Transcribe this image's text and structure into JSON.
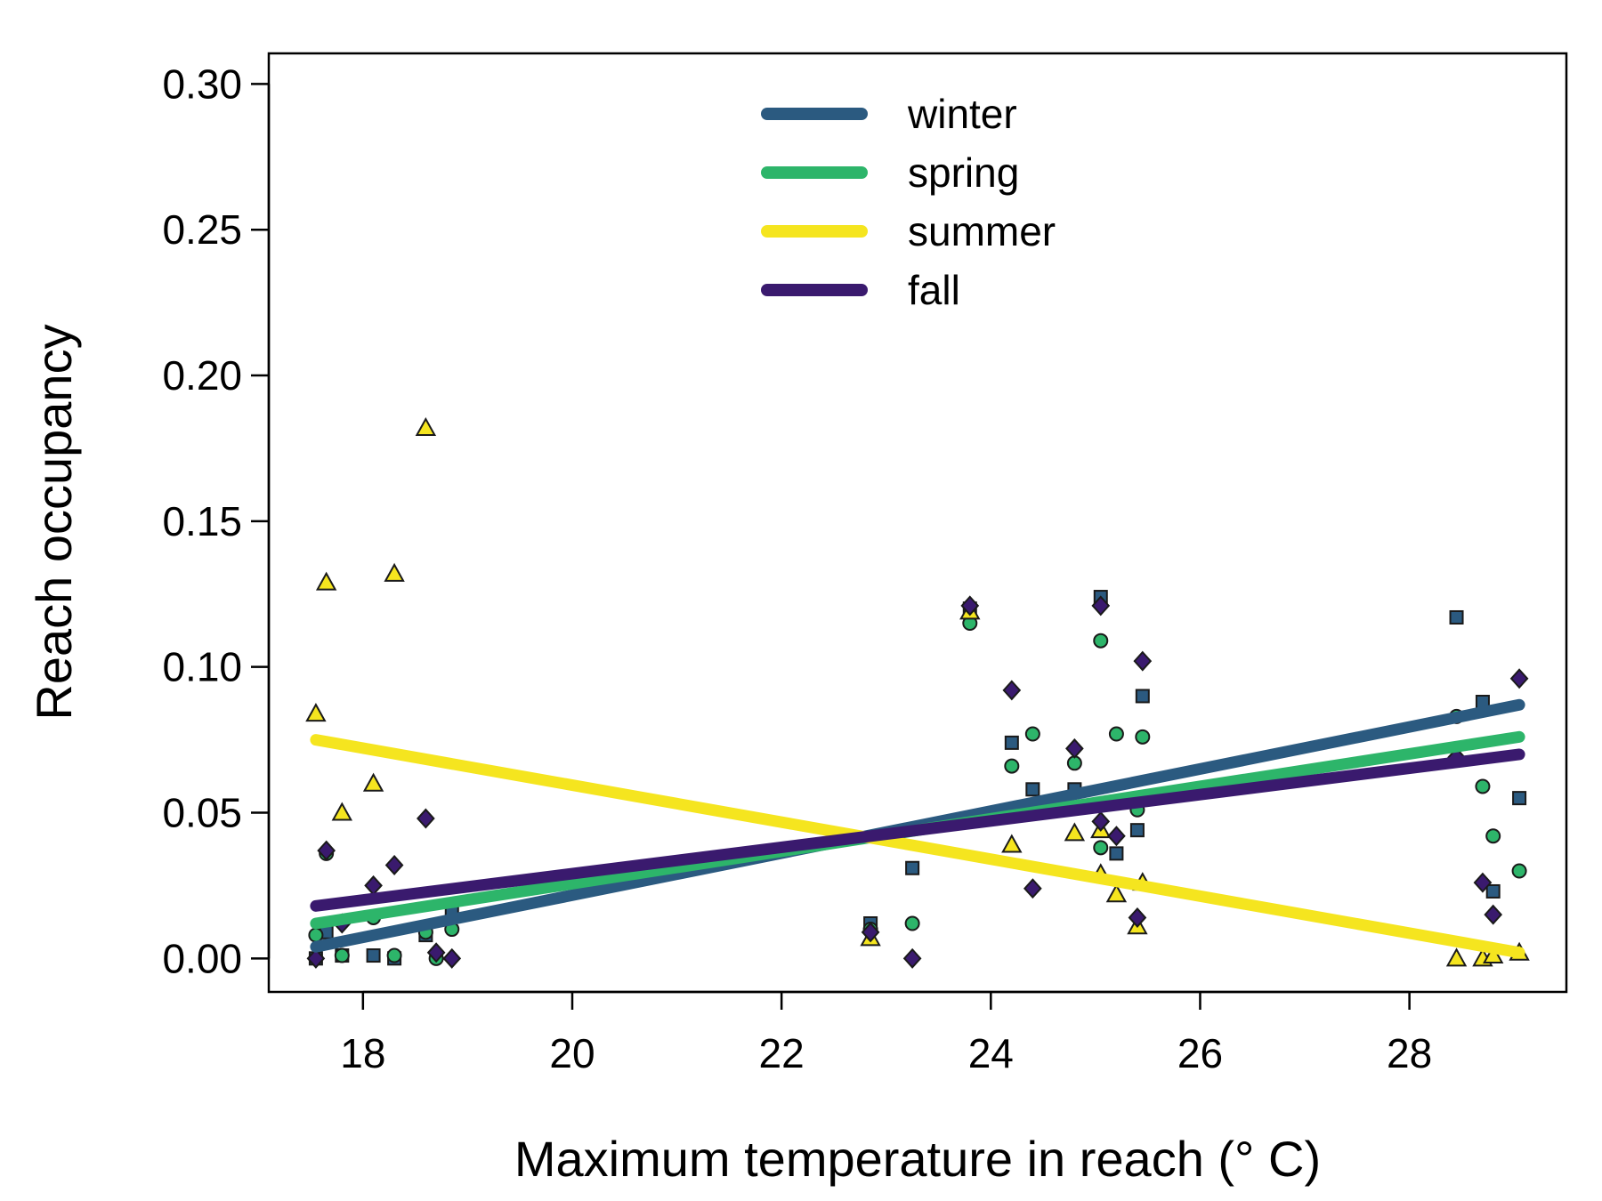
{
  "chart_data": {
    "type": "scatter",
    "xlabel": "Maximum temperature in reach (° C)",
    "ylabel": "Reach occupancy",
    "xlim": [
      17.1,
      29.5
    ],
    "ylim": [
      -0.0115,
      0.3105
    ],
    "x_ticks": [
      18,
      20,
      22,
      24,
      26,
      28
    ],
    "y_ticks": [
      0,
      0.05,
      0.1,
      0.15,
      0.2,
      0.25,
      0.3
    ],
    "x_tick_labels": [
      "18",
      "20",
      "22",
      "24",
      "26",
      "28"
    ],
    "y_tick_labels": [
      "0.00",
      "0.05",
      "0.10",
      "0.15",
      "0.20",
      "0.25",
      "0.30"
    ],
    "grid": false,
    "legend_position": "top-center",
    "series": [
      {
        "name": "winter",
        "color": "#2b5a80",
        "marker": "square",
        "trend": [
          [
            17.55,
            0.004
          ],
          [
            29.05,
            0.087
          ]
        ],
        "x": [
          17.55,
          17.65,
          17.8,
          18.1,
          18.3,
          18.6,
          18.85,
          22.85,
          23.25,
          23.8,
          24.2,
          24.4,
          24.8,
          25.05,
          25.2,
          25.4,
          25.45,
          28.45,
          28.7,
          28.8,
          29.05
        ],
        "y": [
          0.0,
          0.009,
          0.001,
          0.001,
          0.0,
          0.008,
          0.016,
          0.012,
          0.031,
          0.12,
          0.074,
          0.058,
          0.058,
          0.124,
          0.036,
          0.044,
          0.09,
          0.117,
          0.088,
          0.023,
          0.055
        ]
      },
      {
        "name": "spring",
        "color": "#2db56a",
        "marker": "circle",
        "trend": [
          [
            17.55,
            0.012
          ],
          [
            29.05,
            0.076
          ]
        ],
        "x": [
          17.55,
          17.65,
          17.8,
          18.1,
          18.3,
          18.6,
          18.7,
          18.85,
          22.85,
          23.25,
          23.8,
          24.2,
          24.4,
          24.8,
          25.05,
          25.05,
          25.2,
          25.4,
          25.45,
          28.45,
          28.7,
          28.8,
          29.05
        ],
        "y": [
          0.008,
          0.036,
          0.001,
          0.014,
          0.001,
          0.009,
          0.0,
          0.01,
          0.01,
          0.012,
          0.115,
          0.066,
          0.077,
          0.067,
          0.038,
          0.109,
          0.077,
          0.051,
          0.076,
          0.083,
          0.059,
          0.042,
          0.03
        ]
      },
      {
        "name": "summer",
        "color": "#f5e51f",
        "marker": "triangle",
        "trend": [
          [
            17.55,
            0.075
          ],
          [
            29.05,
            0.002
          ]
        ],
        "x": [
          17.55,
          17.65,
          17.8,
          18.1,
          18.3,
          18.6,
          22.85,
          23.8,
          24.2,
          24.8,
          25.05,
          25.05,
          25.2,
          25.4,
          25.45,
          28.45,
          28.7,
          28.8,
          29.05
        ],
        "y": [
          0.084,
          0.129,
          0.05,
          0.06,
          0.132,
          0.182,
          0.007,
          0.119,
          0.039,
          0.043,
          0.044,
          0.029,
          0.022,
          0.011,
          0.026,
          0.0,
          0.0,
          0.001,
          0.002
        ]
      },
      {
        "name": "fall",
        "color": "#3a1a6e",
        "marker": "diamond",
        "trend": [
          [
            17.55,
            0.018
          ],
          [
            29.05,
            0.07
          ]
        ],
        "x": [
          17.55,
          17.65,
          17.8,
          18.1,
          18.3,
          18.6,
          18.7,
          18.85,
          22.85,
          23.25,
          23.8,
          24.2,
          24.4,
          24.8,
          25.05,
          25.05,
          25.2,
          25.4,
          25.45,
          28.45,
          28.7,
          28.8,
          29.05
        ],
        "y": [
          0.0,
          0.037,
          0.012,
          0.025,
          0.032,
          0.048,
          0.002,
          0.0,
          0.009,
          0.0,
          0.121,
          0.092,
          0.024,
          0.072,
          0.121,
          0.047,
          0.042,
          0.014,
          0.102,
          0.069,
          0.026,
          0.015,
          0.096
        ]
      }
    ]
  }
}
